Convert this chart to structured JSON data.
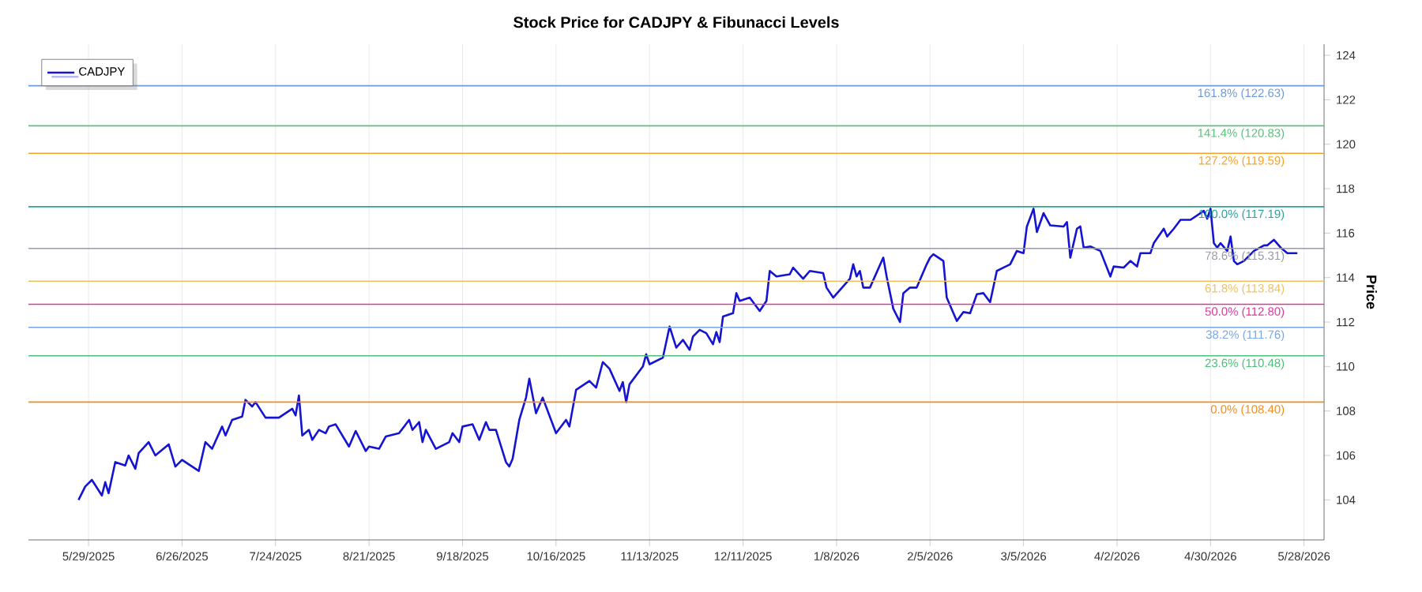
{
  "chart_data": {
    "type": "line",
    "title": "Stock Price for CADJPY & Fibunacci Levels",
    "ylabel": "Price",
    "x": [
      "2025-05-26",
      "2025-05-28",
      "2025-05-30",
      "2025-06-02",
      "2025-06-03",
      "2025-06-04",
      "2025-06-06",
      "2025-06-09",
      "2025-06-10",
      "2025-06-12",
      "2025-06-13",
      "2025-06-16",
      "2025-06-18",
      "2025-06-22",
      "2025-06-24",
      "2025-06-26",
      "2025-07-01",
      "2025-07-03",
      "2025-07-05",
      "2025-07-08",
      "2025-07-09",
      "2025-07-11",
      "2025-07-14",
      "2025-07-15",
      "2025-07-17",
      "2025-07-18",
      "2025-07-21",
      "2025-07-25",
      "2025-07-29",
      "2025-07-30",
      "2025-07-31",
      "2025-08-01",
      "2025-08-03",
      "2025-08-04",
      "2025-08-06",
      "2025-08-08",
      "2025-08-09",
      "2025-08-11",
      "2025-08-15",
      "2025-08-17",
      "2025-08-20",
      "2025-08-21",
      "2025-08-24",
      "2025-08-26",
      "2025-08-30",
      "2025-09-02",
      "2025-09-03",
      "2025-09-05",
      "2025-09-06",
      "2025-09-07",
      "2025-09-10",
      "2025-09-14",
      "2025-09-15",
      "2025-09-17",
      "2025-09-18",
      "2025-09-21",
      "2025-09-23",
      "2025-09-25",
      "2025-09-26",
      "2025-09-28",
      "2025-10-01",
      "2025-10-02",
      "2025-10-03",
      "2025-10-05",
      "2025-10-07",
      "2025-10-08",
      "2025-10-10",
      "2025-10-12",
      "2025-10-16",
      "2025-10-19",
      "2025-10-20",
      "2025-10-22",
      "2025-10-26",
      "2025-10-28",
      "2025-10-30",
      "2025-11-01",
      "2025-11-04",
      "2025-11-05",
      "2025-11-06",
      "2025-11-07",
      "2025-11-11",
      "2025-11-12",
      "2025-11-13",
      "2025-11-17",
      "2025-11-19",
      "2025-11-21",
      "2025-11-23",
      "2025-11-25",
      "2025-11-26",
      "2025-11-28",
      "2025-11-30",
      "2025-12-02",
      "2025-12-03",
      "2025-12-04",
      "2025-12-05",
      "2025-12-08",
      "2025-12-09",
      "2025-12-10",
      "2025-12-13",
      "2025-12-16",
      "2025-12-18",
      "2025-12-19",
      "2025-12-21",
      "2025-12-25",
      "2025-12-26",
      "2025-12-29",
      "2025-12-31",
      "2026-01-04",
      "2026-01-05",
      "2026-01-07",
      "2026-01-12",
      "2026-01-13",
      "2026-01-14",
      "2026-01-15",
      "2026-01-16",
      "2026-01-18",
      "2026-01-22",
      "2026-01-23",
      "2026-01-25",
      "2026-01-27",
      "2026-01-28",
      "2026-01-30",
      "2026-02-01",
      "2026-02-04",
      "2026-02-05",
      "2026-02-06",
      "2026-02-09",
      "2026-02-10",
      "2026-02-13",
      "2026-02-15",
      "2026-02-17",
      "2026-02-19",
      "2026-02-21",
      "2026-02-23",
      "2026-02-25",
      "2026-03-01",
      "2026-03-03",
      "2026-03-05",
      "2026-03-06",
      "2026-03-08",
      "2026-03-09",
      "2026-03-11",
      "2026-03-13",
      "2026-03-17",
      "2026-03-18",
      "2026-03-19",
      "2026-03-21",
      "2026-03-22",
      "2026-03-23",
      "2026-03-25",
      "2026-03-28",
      "2026-03-31",
      "2026-04-01",
      "2026-04-04",
      "2026-04-06",
      "2026-04-08",
      "2026-04-09",
      "2026-04-12",
      "2026-04-13",
      "2026-04-16",
      "2026-04-17",
      "2026-04-19",
      "2026-04-21",
      "2026-04-24",
      "2026-04-28",
      "2026-04-29",
      "2026-04-30",
      "2026-05-01",
      "2026-05-02",
      "2026-05-03",
      "2026-05-05",
      "2026-05-06",
      "2026-05-07",
      "2026-05-08",
      "2026-05-10",
      "2026-05-13",
      "2026-05-16",
      "2026-05-17",
      "2026-05-19",
      "2026-05-21",
      "2026-05-23",
      "2026-05-26"
    ],
    "series": [
      {
        "name": "CADJPY",
        "color": "#1414d2",
        "values": [
          104.0,
          104.6,
          104.9,
          104.2,
          104.8,
          104.3,
          105.7,
          105.55,
          106.0,
          105.4,
          106.1,
          106.6,
          106.0,
          106.5,
          105.5,
          105.8,
          105.3,
          106.6,
          106.3,
          107.3,
          106.9,
          107.6,
          107.75,
          108.5,
          108.2,
          108.4,
          107.7,
          107.7,
          108.1,
          107.8,
          108.7,
          106.9,
          107.15,
          106.7,
          107.15,
          107.0,
          107.3,
          107.4,
          106.4,
          107.1,
          106.2,
          106.4,
          106.3,
          106.85,
          107.0,
          107.6,
          107.15,
          107.5,
          106.6,
          107.15,
          106.3,
          106.6,
          107.0,
          106.6,
          107.3,
          107.4,
          106.7,
          107.5,
          107.15,
          107.15,
          105.7,
          105.5,
          105.85,
          107.6,
          108.6,
          109.45,
          107.9,
          108.6,
          107.0,
          107.6,
          107.3,
          108.95,
          109.35,
          109.05,
          110.2,
          109.9,
          108.9,
          109.3,
          108.4,
          109.2,
          110.0,
          110.55,
          110.1,
          110.4,
          111.8,
          110.85,
          111.2,
          110.75,
          111.35,
          111.65,
          111.5,
          111.0,
          111.55,
          111.1,
          112.25,
          112.4,
          113.3,
          112.95,
          113.1,
          112.5,
          112.95,
          114.3,
          114.05,
          114.15,
          114.45,
          113.95,
          114.3,
          114.2,
          113.55,
          113.1,
          113.95,
          114.6,
          114.05,
          114.3,
          113.55,
          113.55,
          114.9,
          114.05,
          112.6,
          112.0,
          113.3,
          113.55,
          113.55,
          114.6,
          114.9,
          115.05,
          114.75,
          113.1,
          112.05,
          112.45,
          112.4,
          113.25,
          113.3,
          112.9,
          114.3,
          114.6,
          115.2,
          115.1,
          116.3,
          117.1,
          116.05,
          116.9,
          116.35,
          116.3,
          116.5,
          114.9,
          116.2,
          116.3,
          115.35,
          115.4,
          115.2,
          114.05,
          114.5,
          114.45,
          114.75,
          114.5,
          115.1,
          115.1,
          115.55,
          116.2,
          115.85,
          116.2,
          116.6,
          116.6,
          117.0,
          116.65,
          117.1,
          115.55,
          115.35,
          115.55,
          115.2,
          115.85,
          114.75,
          114.6,
          114.75,
          115.2,
          115.45,
          115.45,
          115.7,
          115.35,
          115.1,
          115.1
        ]
      }
    ],
    "xlim": [
      "2025-05-11",
      "2026-06-03"
    ],
    "xticks": [
      {
        "value": "2025-05-29",
        "label": "5/29/2025"
      },
      {
        "value": "2025-06-26",
        "label": "6/26/2025"
      },
      {
        "value": "2025-07-24",
        "label": "7/24/2025"
      },
      {
        "value": "2025-08-21",
        "label": "8/21/2025"
      },
      {
        "value": "2025-09-18",
        "label": "9/18/2025"
      },
      {
        "value": "2025-10-16",
        "label": "10/16/2025"
      },
      {
        "value": "2025-11-13",
        "label": "11/13/2025"
      },
      {
        "value": "2025-12-11",
        "label": "12/11/2025"
      },
      {
        "value": "2026-01-08",
        "label": "1/8/2026"
      },
      {
        "value": "2026-02-05",
        "label": "2/5/2026"
      },
      {
        "value": "2026-03-05",
        "label": "3/5/2026"
      },
      {
        "value": "2026-04-02",
        "label": "4/2/2026"
      },
      {
        "value": "2026-04-30",
        "label": "4/30/2026"
      },
      {
        "value": "2026-05-28",
        "label": "5/28/2026"
      }
    ],
    "ylim": [
      102.2,
      124.5
    ],
    "yticks": [
      104,
      106,
      108,
      110,
      112,
      114,
      116,
      118,
      120,
      122,
      124
    ],
    "ref_lines": [
      {
        "axis": "y",
        "value": 122.63,
        "label": "161.8% (122.63)",
        "color": "#6f9ad8"
      },
      {
        "axis": "y",
        "value": 120.83,
        "label": "141.4% (120.83)",
        "color": "#5cbf7c"
      },
      {
        "axis": "y",
        "value": 119.59,
        "label": "127.2% (119.59)",
        "color": "#f5a32a"
      },
      {
        "axis": "y",
        "value": 117.19,
        "label": "100.0% (117.19)",
        "color": "#2aa39a"
      },
      {
        "axis": "y",
        "value": 115.31,
        "label": "78.6% (115.31)",
        "color": "#9a9aa8"
      },
      {
        "axis": "y",
        "value": 113.84,
        "label": "61.8% (113.84)",
        "color": "#f0c060"
      },
      {
        "axis": "y",
        "value": 112.8,
        "label": "50.0% (112.80)",
        "color": "#d63c9c"
      },
      {
        "axis": "y",
        "value": 111.76,
        "label": "38.2% (111.76)",
        "color": "#78a6e6"
      },
      {
        "axis": "y",
        "value": 110.48,
        "label": "23.6% (110.48)",
        "color": "#4dbf7a"
      },
      {
        "axis": "y",
        "value": 108.4,
        "label": "0.0% (108.40)",
        "color": "#f28c1e"
      }
    ],
    "grid": "x",
    "legend": "top left",
    "marker": "none",
    "line_style": "solid"
  }
}
